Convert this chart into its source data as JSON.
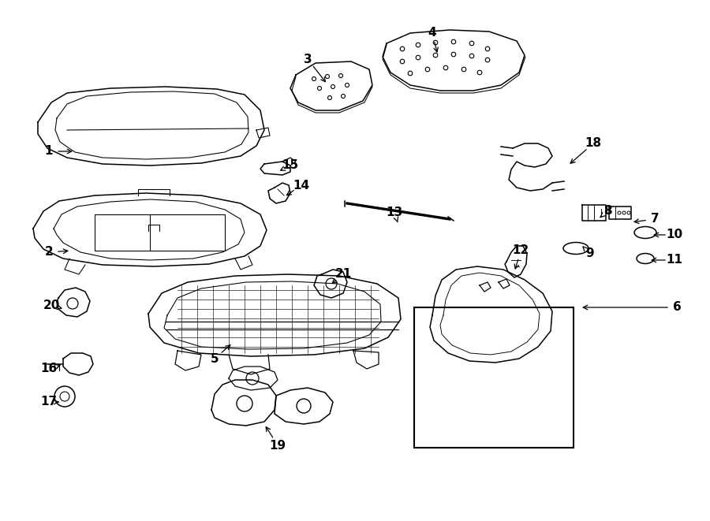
{
  "bg_color": "#ffffff",
  "line_color": "#000000",
  "fig_width": 9.0,
  "fig_height": 6.61,
  "label_configs": [
    [
      "1",
      62,
      192,
      95,
      192
    ],
    [
      "2",
      62,
      320,
      90,
      318
    ],
    [
      "3",
      390,
      75,
      415,
      107
    ],
    [
      "4",
      548,
      42,
      555,
      70
    ],
    [
      "5",
      272,
      455,
      295,
      435
    ],
    [
      "6",
      858,
      390,
      735,
      390
    ],
    [
      "7",
      830,
      278,
      800,
      282
    ],
    [
      "8",
      770,
      268,
      758,
      278
    ],
    [
      "9",
      748,
      322,
      738,
      312
    ],
    [
      "10",
      855,
      298,
      825,
      298
    ],
    [
      "11",
      855,
      330,
      822,
      330
    ],
    [
      "12",
      660,
      318,
      652,
      345
    ],
    [
      "13",
      500,
      270,
      505,
      285
    ],
    [
      "14",
      382,
      235,
      360,
      250
    ],
    [
      "15",
      368,
      210,
      352,
      218
    ],
    [
      "16",
      62,
      468,
      80,
      462
    ],
    [
      "17",
      62,
      510,
      78,
      510
    ],
    [
      "18",
      752,
      182,
      720,
      210
    ],
    [
      "19",
      352,
      565,
      335,
      538
    ],
    [
      "20",
      65,
      388,
      82,
      392
    ],
    [
      "21",
      435,
      348,
      418,
      362
    ]
  ]
}
